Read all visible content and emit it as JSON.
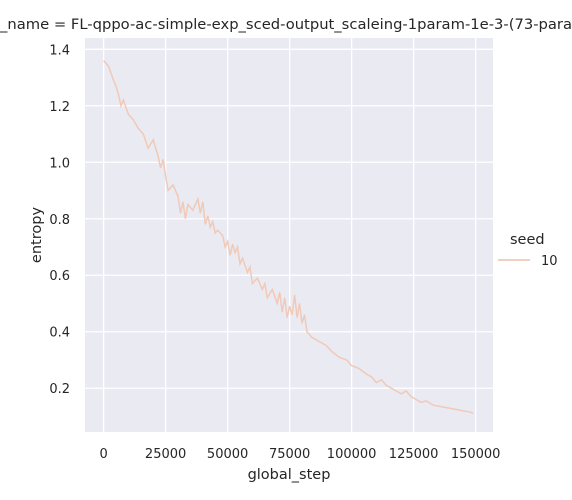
{
  "chart_data": {
    "type": "line",
    "title": "_name = FL-qppo-ac-simple-exp_sced-output_scaleing-1param-1e-3-(73-para",
    "xlabel": "global_step",
    "ylabel": "entropy",
    "xlim": [
      -7500,
      157000
    ],
    "ylim": [
      0.045,
      1.44
    ],
    "xticks": [
      0,
      25000,
      50000,
      75000,
      100000,
      125000,
      150000
    ],
    "xtick_labels": [
      "0",
      "25000",
      "50000",
      "75000",
      "100000",
      "125000",
      "150000"
    ],
    "yticks": [
      0.2,
      0.4,
      0.6,
      0.8,
      1.0,
      1.2,
      1.4
    ],
    "ytick_labels": [
      "0.2",
      "0.4",
      "0.6",
      "0.8",
      "1.0",
      "1.2",
      "1.4"
    ],
    "grid": true,
    "legend": {
      "title": "seed",
      "placement": "right"
    },
    "colors": {
      "background": "#eaeaf2",
      "grid": "#ffffff",
      "line": "#f1c9b8"
    },
    "series": [
      {
        "name": "10",
        "x": [
          0,
          2000,
          4000,
          5000,
          6000,
          7000,
          8000,
          10000,
          12000,
          14000,
          16000,
          18000,
          20000,
          22000,
          23000,
          24000,
          25000,
          26000,
          28000,
          30000,
          31000,
          32000,
          33000,
          34000,
          36000,
          38000,
          39000,
          40000,
          41000,
          42000,
          43000,
          44000,
          45000,
          46000,
          48000,
          49000,
          50000,
          51000,
          52000,
          53000,
          54000,
          55000,
          56000,
          58000,
          59000,
          60000,
          62000,
          64000,
          65000,
          66000,
          68000,
          70000,
          71000,
          72000,
          73000,
          74000,
          75000,
          76000,
          77000,
          78000,
          79000,
          80000,
          81000,
          82000,
          84000,
          86000,
          88000,
          90000,
          92000,
          95000,
          98000,
          100000,
          103000,
          106000,
          108000,
          110000,
          112000,
          114000,
          116000,
          118000,
          120000,
          122000,
          124000,
          126000,
          128000,
          130000,
          133000,
          136000,
          139000,
          142000,
          145000,
          148000,
          149000
        ],
        "values": [
          1.36,
          1.34,
          1.29,
          1.27,
          1.24,
          1.2,
          1.22,
          1.17,
          1.15,
          1.12,
          1.1,
          1.05,
          1.08,
          1.02,
          0.98,
          1.01,
          0.95,
          0.9,
          0.92,
          0.88,
          0.82,
          0.86,
          0.8,
          0.85,
          0.83,
          0.87,
          0.82,
          0.86,
          0.78,
          0.81,
          0.77,
          0.79,
          0.75,
          0.76,
          0.74,
          0.7,
          0.72,
          0.67,
          0.71,
          0.68,
          0.7,
          0.64,
          0.66,
          0.61,
          0.63,
          0.57,
          0.59,
          0.55,
          0.57,
          0.52,
          0.55,
          0.5,
          0.54,
          0.47,
          0.52,
          0.45,
          0.49,
          0.46,
          0.53,
          0.45,
          0.5,
          0.43,
          0.46,
          0.4,
          0.38,
          0.37,
          0.36,
          0.35,
          0.33,
          0.31,
          0.3,
          0.28,
          0.27,
          0.25,
          0.24,
          0.22,
          0.23,
          0.21,
          0.2,
          0.19,
          0.18,
          0.19,
          0.17,
          0.16,
          0.15,
          0.155,
          0.14,
          0.135,
          0.13,
          0.125,
          0.12,
          0.115,
          0.11
        ]
      }
    ]
  }
}
